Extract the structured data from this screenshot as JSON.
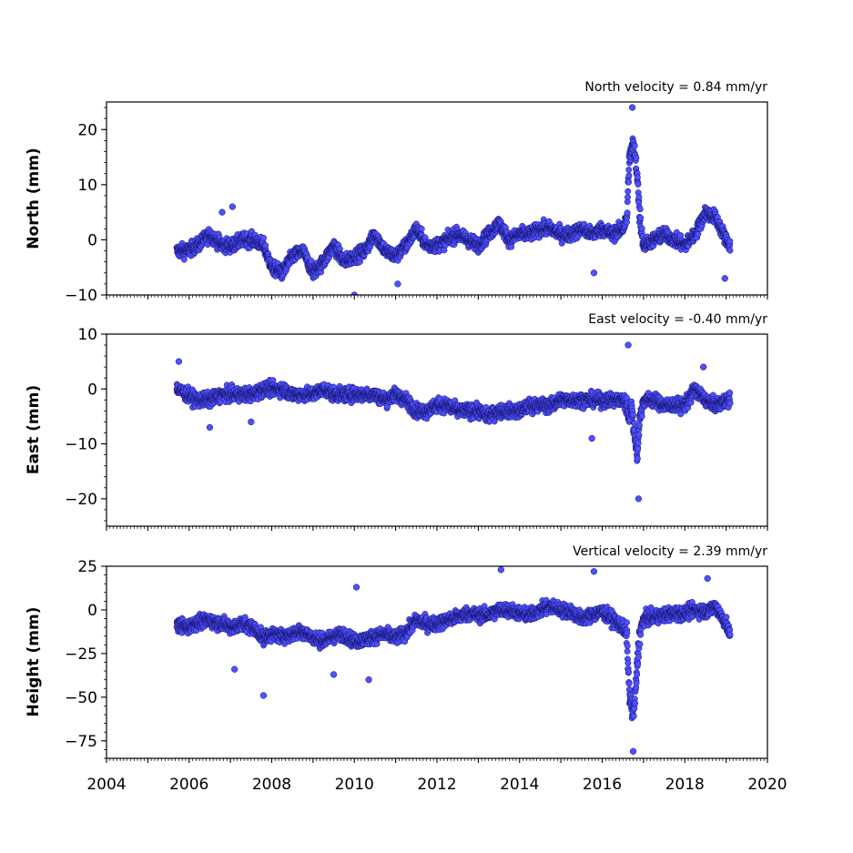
{
  "chart_data": [
    {
      "type": "scatter",
      "panel": "north",
      "ylabel": "North (mm)",
      "annotation": "North velocity = 0.84 mm/yr",
      "ylim": [
        -10,
        25
      ],
      "xlim": [
        2004,
        2020
      ],
      "yticks": [
        -10,
        0,
        10,
        20
      ],
      "ytick_labels": [
        "−10",
        "0",
        "10",
        "20"
      ],
      "x_ticklabels_visible": false,
      "velocity_mm_per_yr": 0.84,
      "series": [
        {
          "x": [
            2005.7,
            2005.95,
            2006.2,
            2006.5,
            2006.8,
            2007.05,
            2007.3,
            2007.55,
            2007.8,
            2008.0,
            2008.25,
            2008.5,
            2008.75,
            2009.0,
            2009.25,
            2009.5,
            2009.75,
            2010.0,
            2010.25,
            2010.5,
            2010.75,
            2011.0,
            2011.25,
            2011.5,
            2011.75,
            2012.0,
            2012.25,
            2012.5,
            2012.75,
            2013.0,
            2013.25,
            2013.5,
            2013.75,
            2014.0,
            2014.25,
            2014.5,
            2014.75,
            2015.0,
            2015.25,
            2015.5,
            2015.75,
            2016.0,
            2016.25,
            2016.5,
            2016.6,
            2016.65,
            2016.7,
            2016.75,
            2016.8,
            2016.85,
            2016.9,
            2017.0,
            2017.25,
            2017.5,
            2017.75,
            2018.0,
            2018.25,
            2018.5,
            2018.75,
            2019.0,
            2019.1
          ],
          "y": [
            -2,
            -2,
            -1,
            1,
            -1,
            -1,
            0,
            0,
            -1,
            -5,
            -6,
            -3,
            -2,
            -6,
            -4,
            -1,
            -4,
            -3,
            -2,
            1,
            -2,
            -3,
            -1,
            2,
            -1,
            -1,
            0,
            1,
            0,
            -1,
            1,
            3,
            0,
            1,
            1,
            2,
            2,
            1,
            1,
            2,
            1,
            2,
            1,
            2,
            4,
            14,
            16,
            17,
            15,
            12,
            5,
            -1,
            0,
            1,
            0,
            -1,
            1,
            5,
            4,
            0,
            -1
          ]
        }
      ],
      "outliers": [
        {
          "x": 2016.73,
          "y": 24
        },
        {
          "x": 2010.0,
          "y": -10
        },
        {
          "x": 2011.05,
          "y": -8
        },
        {
          "x": 2015.8,
          "y": -6
        },
        {
          "x": 2018.97,
          "y": -7
        },
        {
          "x": 2006.8,
          "y": 5
        },
        {
          "x": 2007.05,
          "y": 6
        }
      ]
    },
    {
      "type": "scatter",
      "panel": "east",
      "ylabel": "East (mm)",
      "annotation": "East velocity = -0.40 mm/yr",
      "ylim": [
        -25,
        10
      ],
      "xlim": [
        2004,
        2020
      ],
      "yticks": [
        -20,
        -10,
        0,
        10
      ],
      "ytick_labels": [
        "−20",
        "−10",
        "0",
        "10"
      ],
      "x_ticklabels_visible": false,
      "velocity_mm_per_yr": -0.4,
      "series": [
        {
          "x": [
            2005.7,
            2005.95,
            2006.2,
            2006.5,
            2006.8,
            2007.05,
            2007.3,
            2007.55,
            2007.8,
            2008.0,
            2008.25,
            2008.5,
            2008.75,
            2009.0,
            2009.25,
            2009.5,
            2009.75,
            2010.0,
            2010.25,
            2010.5,
            2010.75,
            2011.0,
            2011.25,
            2011.5,
            2011.75,
            2012.0,
            2012.25,
            2012.5,
            2012.75,
            2013.0,
            2013.25,
            2013.5,
            2013.75,
            2014.0,
            2014.25,
            2014.5,
            2014.75,
            2015.0,
            2015.25,
            2015.5,
            2015.75,
            2016.0,
            2016.25,
            2016.5,
            2016.6,
            2016.65,
            2016.7,
            2016.75,
            2016.8,
            2016.85,
            2016.9,
            2017.0,
            2017.25,
            2017.5,
            2017.75,
            2018.0,
            2018.25,
            2018.5,
            2018.75,
            2019.0,
            2019.1
          ],
          "y": [
            0,
            -1,
            -2,
            -2,
            -1,
            -1,
            -1,
            -1,
            0,
            0,
            0,
            -1,
            -1,
            -1,
            0,
            -1,
            -1,
            -1,
            -1,
            -1,
            -2,
            -1,
            -2,
            -4,
            -4,
            -3,
            -3,
            -4,
            -4,
            -4,
            -5,
            -4,
            -4,
            -4,
            -3,
            -3,
            -3,
            -2,
            -2,
            -2,
            -2,
            -2,
            -2,
            -2,
            -3,
            -5,
            -3,
            -6,
            -9,
            -12,
            -6,
            -2,
            -2,
            -3,
            -3,
            -3,
            0,
            -2,
            -3,
            -2,
            -2
          ]
        }
      ],
      "outliers": [
        {
          "x": 2016.63,
          "y": 8
        },
        {
          "x": 2016.88,
          "y": -20
        },
        {
          "x": 2006.5,
          "y": -7
        },
        {
          "x": 2007.5,
          "y": -6
        },
        {
          "x": 2015.75,
          "y": -9
        },
        {
          "x": 2005.75,
          "y": 5
        },
        {
          "x": 2018.45,
          "y": 4
        }
      ]
    },
    {
      "type": "scatter",
      "panel": "height",
      "ylabel": "Height (mm)",
      "annotation": "Vertical velocity = 2.39 mm/yr",
      "ylim": [
        -85,
        25
      ],
      "xlim": [
        2004,
        2020
      ],
      "xticks": [
        2004,
        2006,
        2008,
        2010,
        2012,
        2014,
        2016,
        2018,
        2020
      ],
      "xtick_labels": [
        "2004",
        "2006",
        "2008",
        "2010",
        "2012",
        "2014",
        "2016",
        "2018",
        "2020"
      ],
      "yticks": [
        -75,
        -50,
        -25,
        0,
        25
      ],
      "ytick_labels": [
        "−75",
        "−50",
        "−25",
        "0",
        "25"
      ],
      "x_ticklabels_visible": true,
      "velocity_mm_per_yr": 2.39,
      "series": [
        {
          "x": [
            2005.7,
            2005.95,
            2006.2,
            2006.5,
            2006.8,
            2007.05,
            2007.3,
            2007.55,
            2007.8,
            2008.0,
            2008.25,
            2008.5,
            2008.75,
            2009.0,
            2009.25,
            2009.5,
            2009.75,
            2010.0,
            2010.25,
            2010.5,
            2010.75,
            2011.0,
            2011.25,
            2011.5,
            2011.75,
            2012.0,
            2012.25,
            2012.5,
            2012.75,
            2013.0,
            2013.25,
            2013.5,
            2013.75,
            2014.0,
            2014.25,
            2014.5,
            2014.75,
            2015.0,
            2015.25,
            2015.5,
            2015.75,
            2016.0,
            2016.25,
            2016.5,
            2016.6,
            2016.65,
            2016.7,
            2016.75,
            2016.8,
            2016.85,
            2016.9,
            2017.0,
            2017.25,
            2017.5,
            2017.75,
            2018.0,
            2018.25,
            2018.5,
            2018.75,
            2019.0,
            2019.1
          ],
          "y": [
            -8,
            -10,
            -7,
            -6,
            -8,
            -10,
            -8,
            -10,
            -16,
            -14,
            -15,
            -14,
            -12,
            -16,
            -18,
            -15,
            -14,
            -18,
            -17,
            -15,
            -14,
            -16,
            -13,
            -6,
            -8,
            -8,
            -6,
            -4,
            -2,
            -3,
            -3,
            0,
            0,
            -2,
            -3,
            0,
            2,
            0,
            -1,
            -5,
            -3,
            -1,
            -5,
            -10,
            -15,
            -45,
            -55,
            -60,
            -50,
            -30,
            -15,
            -5,
            -4,
            -3,
            -2,
            -2,
            0,
            -1,
            2,
            -8,
            -15
          ]
        }
      ],
      "outliers": [
        {
          "x": 2016.75,
          "y": -81
        },
        {
          "x": 2007.8,
          "y": -49
        },
        {
          "x": 2010.05,
          "y": 13
        },
        {
          "x": 2013.55,
          "y": 23
        },
        {
          "x": 2015.8,
          "y": 22
        },
        {
          "x": 2010.35,
          "y": -40
        },
        {
          "x": 2009.5,
          "y": -37
        },
        {
          "x": 2018.55,
          "y": 18
        },
        {
          "x": 2007.1,
          "y": -34
        }
      ]
    }
  ]
}
